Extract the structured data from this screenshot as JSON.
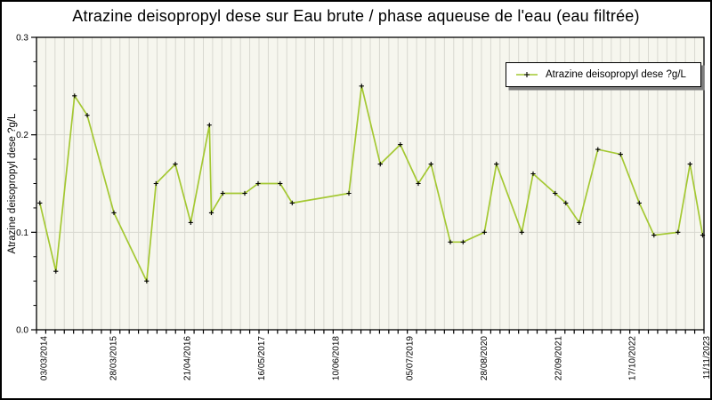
{
  "title": "Atrazine deisopropyl dese sur Eau brute / phase aqueuse de l'eau (eau filtrée)",
  "colors": {
    "line": "#a4c832",
    "marker": "#000000",
    "plot_background": "#f6f6ee",
    "grid": "#d8d8d0",
    "frame": "#000000",
    "text": "#000000",
    "legend_shadow": "#7f7f7f"
  },
  "chart_data": {
    "type": "line",
    "title": "Atrazine deisopropyl dese sur Eau brute / phase aqueuse de l'eau (eau filtrée)",
    "xlabel": "",
    "ylabel": "Atrazine deisopropyl dese ?g/L",
    "ylim": [
      0.0,
      0.3
    ],
    "y_major_ticks": [
      0.0,
      0.1,
      0.2,
      0.3
    ],
    "y_major_tick_labels": [
      "0.0",
      "0.1",
      "0.2",
      "0.3"
    ],
    "y_minor_step": 0.025,
    "x_tick_labels": [
      "03/03/2014",
      "28/03/2015",
      "21/04/2016",
      "16/05/2017",
      "10/06/2018",
      "05/07/2019",
      "28/08/2020",
      "22/09/2021",
      "17/10/2022",
      "11/11/2023"
    ],
    "x_minor_divisions": 72,
    "x_label_every": 8,
    "grid": {
      "vertical": "every minor tick",
      "horizontal": "major ticks only"
    },
    "legend_label": "Atrazine deisopropyl dese ?g/L",
    "legend_position": "upper right",
    "series": [
      {
        "name": "Atrazine deisopropyl dese ?g/L",
        "marker": "+",
        "points": [
          {
            "x": 0.005,
            "y": 0.13
          },
          {
            "x": 0.029,
            "y": 0.06
          },
          {
            "x": 0.057,
            "y": 0.24
          },
          {
            "x": 0.076,
            "y": 0.22
          },
          {
            "x": 0.116,
            "y": 0.12
          },
          {
            "x": 0.165,
            "y": 0.05
          },
          {
            "x": 0.179,
            "y": 0.15
          },
          {
            "x": 0.208,
            "y": 0.17
          },
          {
            "x": 0.231,
            "y": 0.11
          },
          {
            "x": 0.259,
            "y": 0.21
          },
          {
            "x": 0.262,
            "y": 0.12
          },
          {
            "x": 0.279,
            "y": 0.14
          },
          {
            "x": 0.312,
            "y": 0.14
          },
          {
            "x": 0.332,
            "y": 0.15
          },
          {
            "x": 0.365,
            "y": 0.15
          },
          {
            "x": 0.383,
            "y": 0.13
          },
          {
            "x": 0.468,
            "y": 0.14
          },
          {
            "x": 0.487,
            "y": 0.25
          },
          {
            "x": 0.515,
            "y": 0.17
          },
          {
            "x": 0.545,
            "y": 0.19
          },
          {
            "x": 0.572,
            "y": 0.15
          },
          {
            "x": 0.591,
            "y": 0.17
          },
          {
            "x": 0.62,
            "y": 0.09
          },
          {
            "x": 0.639,
            "y": 0.09
          },
          {
            "x": 0.671,
            "y": 0.1
          },
          {
            "x": 0.689,
            "y": 0.17
          },
          {
            "x": 0.727,
            "y": 0.1
          },
          {
            "x": 0.744,
            "y": 0.16
          },
          {
            "x": 0.777,
            "y": 0.14
          },
          {
            "x": 0.793,
            "y": 0.13
          },
          {
            "x": 0.813,
            "y": 0.11
          },
          {
            "x": 0.841,
            "y": 0.185
          },
          {
            "x": 0.875,
            "y": 0.18
          },
          {
            "x": 0.903,
            "y": 0.13
          },
          {
            "x": 0.925,
            "y": 0.097
          },
          {
            "x": 0.961,
            "y": 0.1
          },
          {
            "x": 0.979,
            "y": 0.17
          },
          {
            "x": 0.998,
            "y": 0.097
          }
        ]
      }
    ]
  }
}
